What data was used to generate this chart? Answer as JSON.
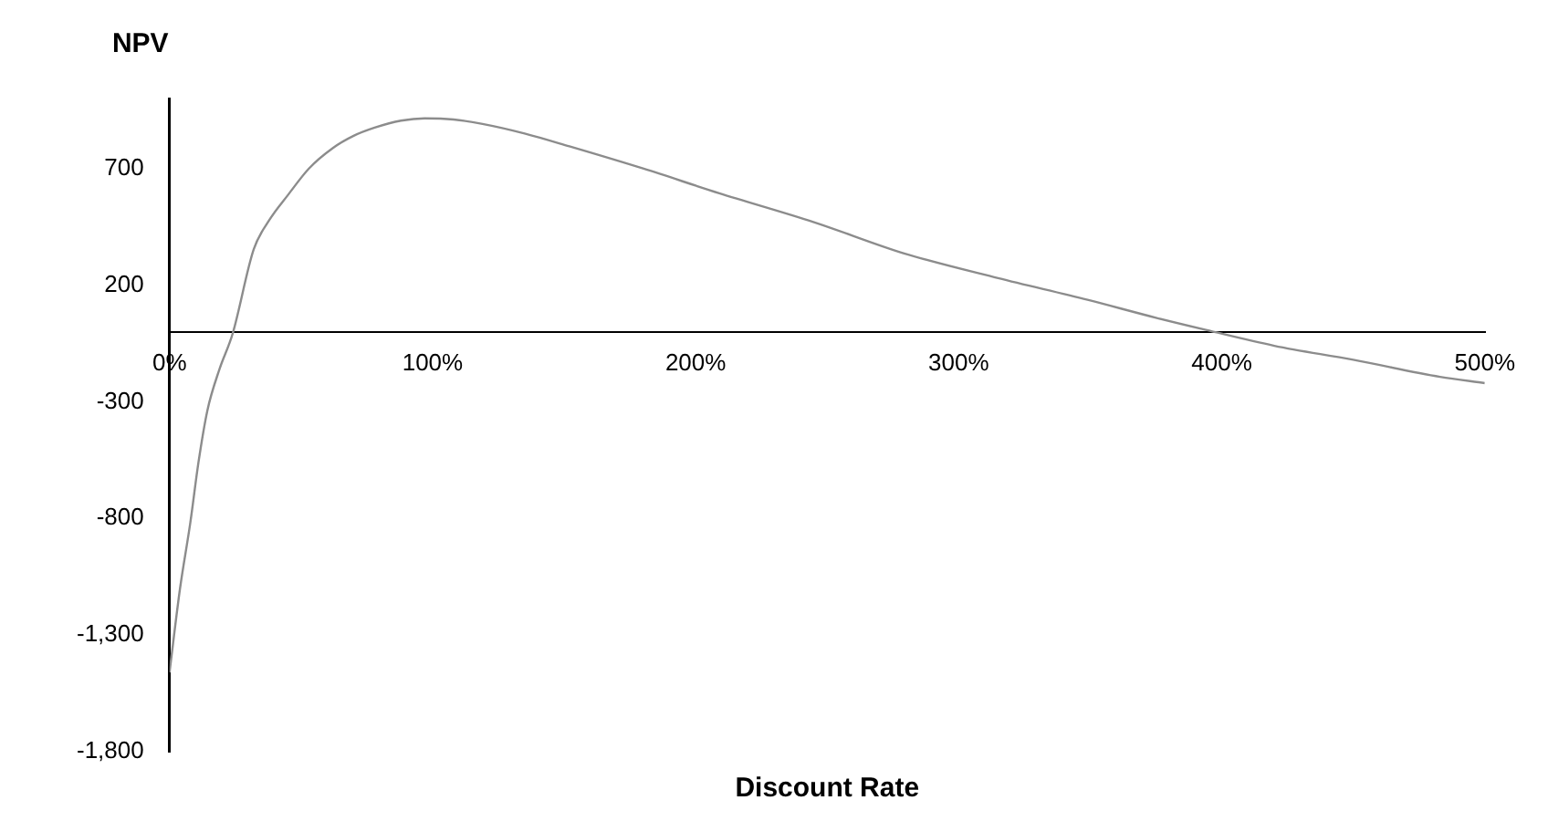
{
  "chart_data": {
    "type": "line",
    "ylabel": "NPV",
    "xlabel": "Discount Rate",
    "x": [
      0,
      4,
      7.9,
      11,
      14.4,
      19,
      24,
      32,
      38,
      45,
      53,
      62,
      70,
      78,
      88,
      97,
      108,
      119,
      135,
      152,
      180,
      209,
      245,
      279,
      315,
      349,
      375,
      394,
      420,
      450,
      483,
      500
    ],
    "series": [
      {
        "color": "#8c8c8c",
        "values": [
          -1460,
          -1100,
          -819,
          -560,
          -337,
          -160,
          -8,
          353,
          480,
          586,
          700,
          787,
          840,
          875,
          905,
          915,
          910,
          891,
          850,
          795,
          700,
          594,
          470,
          337,
          230,
          137,
          60,
          8,
          -60,
          -120,
          -193,
          -220
        ]
      }
    ],
    "xlim": [
      0,
      500
    ],
    "xticks": [
      {
        "value": 0,
        "label": "0%"
      },
      {
        "value": 100,
        "label": "100%"
      },
      {
        "value": 200,
        "label": "200%"
      },
      {
        "value": 300,
        "label": "300%"
      },
      {
        "value": 400,
        "label": "400%"
      },
      {
        "value": 500,
        "label": "500%"
      }
    ],
    "ylim": [
      -1800,
      1000
    ],
    "yticks": [
      {
        "value": -1800,
        "label": "-1,800"
      },
      {
        "value": -1300,
        "label": "-1,300"
      },
      {
        "value": -800,
        "label": "-800"
      },
      {
        "value": -300,
        "label": "-300"
      },
      200,
      700
    ],
    "grid": false,
    "legend": false,
    "marker": "none",
    "line_style": "solid"
  }
}
